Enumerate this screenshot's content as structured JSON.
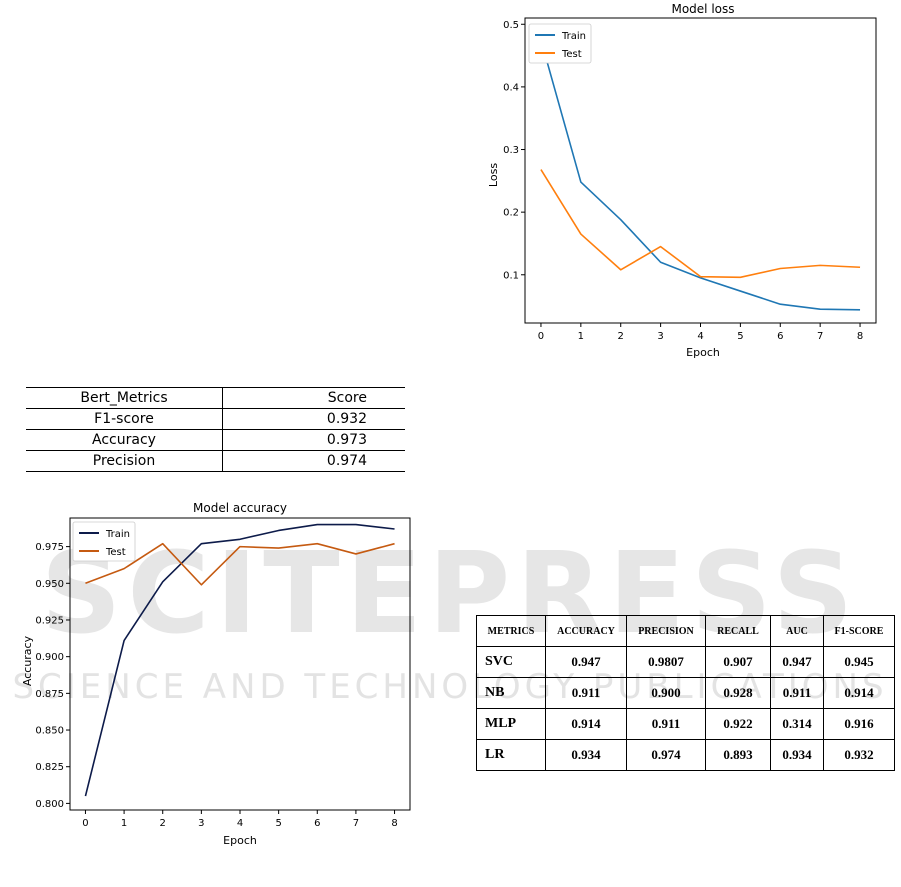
{
  "loss_chart": {
    "title": "Model loss",
    "xlabel": "Epoch",
    "ylabel": "Loss",
    "yticks": [
      "0.1",
      "0.2",
      "0.3",
      "0.4",
      "0.5"
    ],
    "xticks": [
      "0",
      "1",
      "2",
      "3",
      "4",
      "5",
      "6",
      "7",
      "8"
    ],
    "legend": [
      "Train",
      "Test"
    ]
  },
  "accuracy_chart": {
    "title": "Model accuracy",
    "xlabel": "Epoch",
    "ylabel": "Accuracy",
    "yticks": [
      "0.800",
      "0.825",
      "0.850",
      "0.875",
      "0.900",
      "0.925",
      "0.950",
      "0.975"
    ],
    "xticks": [
      "0",
      "1",
      "2",
      "3",
      "4",
      "5",
      "6",
      "7",
      "8"
    ],
    "legend": [
      "Train",
      "Test"
    ]
  },
  "chart_data": [
    {
      "type": "line",
      "title": "Model loss",
      "xlabel": "Epoch",
      "ylabel": "Loss",
      "x": [
        0,
        1,
        2,
        3,
        4,
        5,
        6,
        7,
        8
      ],
      "xlim": [
        -0.4,
        8.4
      ],
      "ylim": [
        0.023,
        0.51
      ],
      "legend_position": "top-left",
      "series": [
        {
          "name": "Train",
          "color": "#1f77b4",
          "values": [
            0.475,
            0.248,
            0.188,
            0.12,
            0.095,
            0.074,
            0.053,
            0.045,
            0.044
          ]
        },
        {
          "name": "Test",
          "color": "#ff7f0e",
          "values": [
            0.268,
            0.165,
            0.108,
            0.145,
            0.097,
            0.096,
            0.11,
            0.115,
            0.112
          ]
        }
      ]
    },
    {
      "type": "line",
      "title": "Model accuracy",
      "xlabel": "Epoch",
      "ylabel": "Accuracy",
      "x": [
        0,
        1,
        2,
        3,
        4,
        5,
        6,
        7,
        8
      ],
      "xlim": [
        -0.4,
        8.4
      ],
      "ylim": [
        0.7955,
        0.9945
      ],
      "legend_position": "top-left",
      "series": [
        {
          "name": "Train",
          "color": "#0d1b4a",
          "values": [
            0.805,
            0.911,
            0.951,
            0.977,
            0.98,
            0.986,
            0.99,
            0.99,
            0.987
          ]
        },
        {
          "name": "Test",
          "color": "#c55a11",
          "values": [
            0.95,
            0.96,
            0.977,
            0.949,
            0.975,
            0.974,
            0.977,
            0.97,
            0.977
          ]
        }
      ]
    },
    {
      "type": "table",
      "columns": [
        "Bert_Metrics",
        "Score"
      ],
      "rows": [
        [
          "F1-score",
          "0.932"
        ],
        [
          "Accuracy",
          "0.973"
        ],
        [
          "Precision",
          "0.974"
        ]
      ]
    },
    {
      "type": "table",
      "columns": [
        "METRICS",
        "ACCURACY",
        "PRECISION",
        "RECALL",
        "AUC",
        "F1-SCORE"
      ],
      "rows": [
        [
          "SVC",
          "0.947",
          "0.9807",
          "0.907",
          "0.947",
          "0.945"
        ],
        [
          "NB",
          "0.911",
          "0.900",
          "0.928",
          "0.911",
          "0.914"
        ],
        [
          "MLP",
          "0.914",
          "0.911",
          "0.922",
          "0.314",
          "0.916"
        ],
        [
          "LR",
          "0.934",
          "0.974",
          "0.893",
          "0.934",
          "0.932"
        ]
      ]
    }
  ],
  "bert_table": {
    "headers": [
      "Bert_Metrics",
      "Score"
    ],
    "rows": [
      {
        "metric": "F1-score",
        "score": "0.932"
      },
      {
        "metric": "Accuracy",
        "score": "0.973"
      },
      {
        "metric": "Precision",
        "score": "0.974"
      }
    ]
  },
  "ml_table": {
    "headers": [
      "METRICS",
      "ACCURACY",
      "PRECISION",
      "RECALL",
      "AUC",
      "F1-SCORE"
    ],
    "rows": [
      [
        "SVC",
        "0.947",
        "0.9807",
        "0.907",
        "0.947",
        "0.945"
      ],
      [
        "NB",
        "0.911",
        "0.900",
        "0.928",
        "0.911",
        "0.914"
      ],
      [
        "MLP",
        "0.914",
        "0.911",
        "0.922",
        "0.314",
        "0.916"
      ],
      [
        "LR",
        "0.934",
        "0.974",
        "0.893",
        "0.934",
        "0.932"
      ]
    ]
  },
  "watermark": {
    "main": "SCITEPRESS",
    "sub": "SCIENCE AND TECHNOLOGY PUBLICATIONS",
    "color": "#d9d9d9"
  }
}
